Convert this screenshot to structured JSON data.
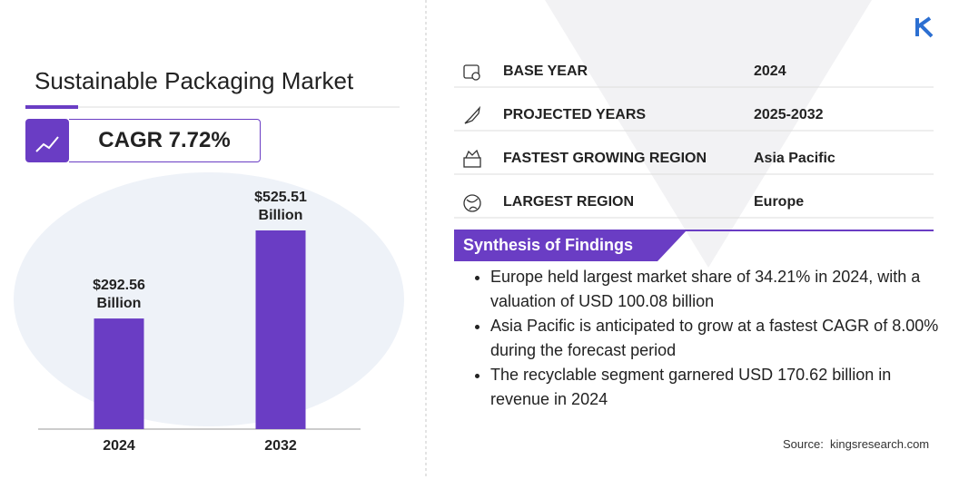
{
  "header": {
    "title": "Sustainable Packaging Market",
    "cagr": "CAGR 7.72%"
  },
  "chart_data": {
    "type": "bar",
    "categories": [
      "2024",
      "2032"
    ],
    "values": [
      292.56,
      525.51
    ],
    "value_labels": [
      "$292.56 Billion",
      "$525.51 Billion"
    ],
    "color": "#6a3dc4"
  },
  "details": {
    "rows": [
      [
        "BASE YEAR",
        "2024"
      ],
      [
        "PROJECTED YEARS",
        "2025-2032"
      ],
      [
        "FASTEST GROWING REGION",
        "Asia Pacific"
      ],
      [
        "LARGEST REGION",
        "Europe"
      ]
    ]
  },
  "findings": {
    "title": "Synthesis of Findings",
    "items": [
      "Europe held largest market share of 34.21% in 2024, with a valuation of USD 100.08 billion",
      "Asia Pacific is anticipated to grow at a fastest CAGR of 8.00% during the forecast period",
      "The recyclable segment garnered USD 170.62 billion in revenue in 2024"
    ]
  },
  "source": "Source:  kingsresearch.com"
}
